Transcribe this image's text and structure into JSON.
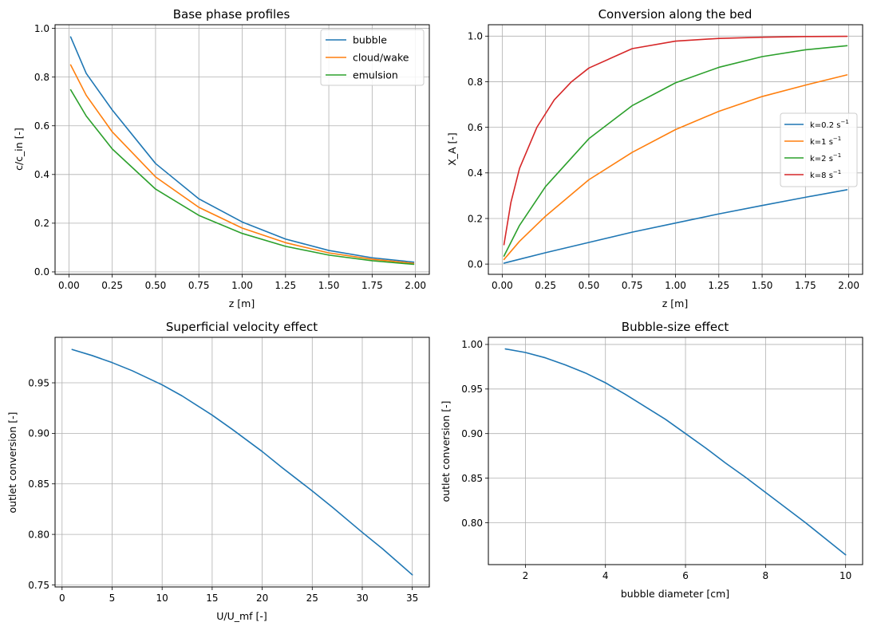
{
  "chart_data": [
    {
      "type": "line",
      "title": "Base phase profiles",
      "xlabel": "z [m]",
      "ylabel": "c/c_in [-]",
      "xlim": [
        -0.08,
        2.08
      ],
      "ylim": [
        -0.01,
        1.015
      ],
      "xticks": [
        0.0,
        0.25,
        0.5,
        0.75,
        1.0,
        1.25,
        1.5,
        1.75,
        2.0
      ],
      "xtick_labels": [
        "0.00",
        "0.25",
        "0.50",
        "0.75",
        "1.00",
        "1.25",
        "1.50",
        "1.75",
        "2.00"
      ],
      "yticks": [
        0.0,
        0.2,
        0.4,
        0.6,
        0.8,
        1.0
      ],
      "ytick_labels": [
        "0.0",
        "0.2",
        "0.4",
        "0.6",
        "0.8",
        "1.0"
      ],
      "grid": true,
      "legend": "upper-right",
      "series": [
        {
          "name": "bubble",
          "color": "#1f77b4",
          "x": [
            0.01,
            0.1,
            0.25,
            0.5,
            0.75,
            1.0,
            1.25,
            1.5,
            1.75,
            1.99
          ],
          "y": [
            0.965,
            0.815,
            0.665,
            0.445,
            0.3,
            0.205,
            0.135,
            0.088,
            0.058,
            0.04
          ]
        },
        {
          "name": "cloud/wake",
          "color": "#ff7f0e",
          "x": [
            0.01,
            0.1,
            0.25,
            0.5,
            0.75,
            1.0,
            1.25,
            1.5,
            1.75,
            1.99
          ],
          "y": [
            0.85,
            0.725,
            0.575,
            0.39,
            0.265,
            0.18,
            0.12,
            0.078,
            0.052,
            0.035
          ]
        },
        {
          "name": "emulsion",
          "color": "#2ca02c",
          "x": [
            0.01,
            0.1,
            0.25,
            0.5,
            0.75,
            1.0,
            1.25,
            1.5,
            1.75,
            1.99
          ],
          "y": [
            0.748,
            0.64,
            0.505,
            0.34,
            0.232,
            0.158,
            0.105,
            0.069,
            0.046,
            0.031
          ]
        }
      ]
    },
    {
      "type": "line",
      "title": "Conversion along the bed",
      "xlabel": "z [m]",
      "ylabel": "X_A [-]",
      "xlim": [
        -0.08,
        2.08
      ],
      "ylim": [
        -0.045,
        1.05
      ],
      "xticks": [
        0.0,
        0.25,
        0.5,
        0.75,
        1.0,
        1.25,
        1.5,
        1.75,
        2.0
      ],
      "xtick_labels": [
        "0.00",
        "0.25",
        "0.50",
        "0.75",
        "1.00",
        "1.25",
        "1.50",
        "1.75",
        "2.00"
      ],
      "yticks": [
        0.0,
        0.2,
        0.4,
        0.6,
        0.8,
        1.0
      ],
      "ytick_labels": [
        "0.0",
        "0.2",
        "0.4",
        "0.6",
        "0.8",
        "1.0"
      ],
      "grid": true,
      "legend": "center-right",
      "series": [
        {
          "name": "k=0.2 s",
          "name_sup": "−1",
          "color": "#1f77b4",
          "x": [
            0.01,
            0.25,
            0.5,
            0.75,
            1.0,
            1.25,
            1.5,
            1.75,
            1.99
          ],
          "y": [
            0.004,
            0.05,
            0.095,
            0.14,
            0.18,
            0.22,
            0.257,
            0.293,
            0.326
          ]
        },
        {
          "name": "k=1 s",
          "name_sup": "−1",
          "color": "#ff7f0e",
          "x": [
            0.01,
            0.1,
            0.25,
            0.5,
            0.75,
            1.0,
            1.25,
            1.5,
            1.75,
            1.99
          ],
          "y": [
            0.02,
            0.1,
            0.21,
            0.37,
            0.49,
            0.59,
            0.67,
            0.735,
            0.785,
            0.83
          ]
        },
        {
          "name": "k=2 s",
          "name_sup": "−1",
          "color": "#2ca02c",
          "x": [
            0.01,
            0.1,
            0.25,
            0.5,
            0.75,
            1.0,
            1.25,
            1.5,
            1.75,
            1.99
          ],
          "y": [
            0.035,
            0.17,
            0.34,
            0.55,
            0.695,
            0.795,
            0.863,
            0.91,
            0.94,
            0.958
          ]
        },
        {
          "name": "k=8 s",
          "name_sup": "−1",
          "color": "#d62728",
          "x": [
            0.01,
            0.05,
            0.1,
            0.2,
            0.3,
            0.4,
            0.5,
            0.75,
            1.0,
            1.25,
            1.5,
            1.75,
            1.99
          ],
          "y": [
            0.085,
            0.27,
            0.42,
            0.6,
            0.72,
            0.8,
            0.86,
            0.945,
            0.978,
            0.99,
            0.995,
            0.998,
            0.999
          ]
        }
      ]
    },
    {
      "type": "line",
      "title": "Superficial velocity effect",
      "xlabel": "U/U_mf [-]",
      "ylabel": "outlet conversion [-]",
      "xlim": [
        -0.7,
        36.7
      ],
      "ylim": [
        0.748,
        0.995
      ],
      "xticks": [
        0,
        5,
        10,
        15,
        20,
        25,
        30,
        35
      ],
      "xtick_labels": [
        "0",
        "5",
        "10",
        "15",
        "20",
        "25",
        "30",
        "35"
      ],
      "yticks": [
        0.75,
        0.8,
        0.85,
        0.9,
        0.95
      ],
      "ytick_labels": [
        "0.75",
        "0.80",
        "0.85",
        "0.90",
        "0.95"
      ],
      "grid": true,
      "series": [
        {
          "color": "#1f77b4",
          "x": [
            1,
            3,
            5,
            7,
            10,
            12,
            15,
            17,
            20,
            22,
            25,
            27,
            30,
            32,
            35
          ],
          "y": [
            0.983,
            0.977,
            0.97,
            0.962,
            0.948,
            0.937,
            0.918,
            0.904,
            0.882,
            0.866,
            0.843,
            0.827,
            0.802,
            0.786,
            0.76
          ]
        }
      ]
    },
    {
      "type": "line",
      "title": "Bubble-size effect",
      "xlabel": "bubble diameter [cm]",
      "ylabel": "outlet conversion [-]",
      "xlim": [
        1.075,
        10.425
      ],
      "ylim": [
        0.753,
        1.008
      ],
      "xticks": [
        2,
        4,
        6,
        8,
        10
      ],
      "xtick_labels": [
        "2",
        "4",
        "6",
        "8",
        "10"
      ],
      "yticks": [
        0.8,
        0.85,
        0.9,
        0.95,
        1.0
      ],
      "ytick_labels": [
        "0.80",
        "0.85",
        "0.90",
        "0.95",
        "1.00"
      ],
      "grid": true,
      "series": [
        {
          "color": "#1f77b4",
          "x": [
            1.5,
            2.0,
            2.5,
            3.0,
            3.5,
            4.0,
            4.5,
            5.0,
            5.5,
            6.0,
            6.5,
            7.0,
            7.5,
            8.0,
            8.5,
            9.0,
            9.5,
            10.0
          ],
          "y": [
            0.995,
            0.991,
            0.985,
            0.977,
            0.968,
            0.957,
            0.944,
            0.93,
            0.916,
            0.9,
            0.884,
            0.867,
            0.851,
            0.834,
            0.817,
            0.8,
            0.782,
            0.764
          ]
        }
      ]
    }
  ]
}
